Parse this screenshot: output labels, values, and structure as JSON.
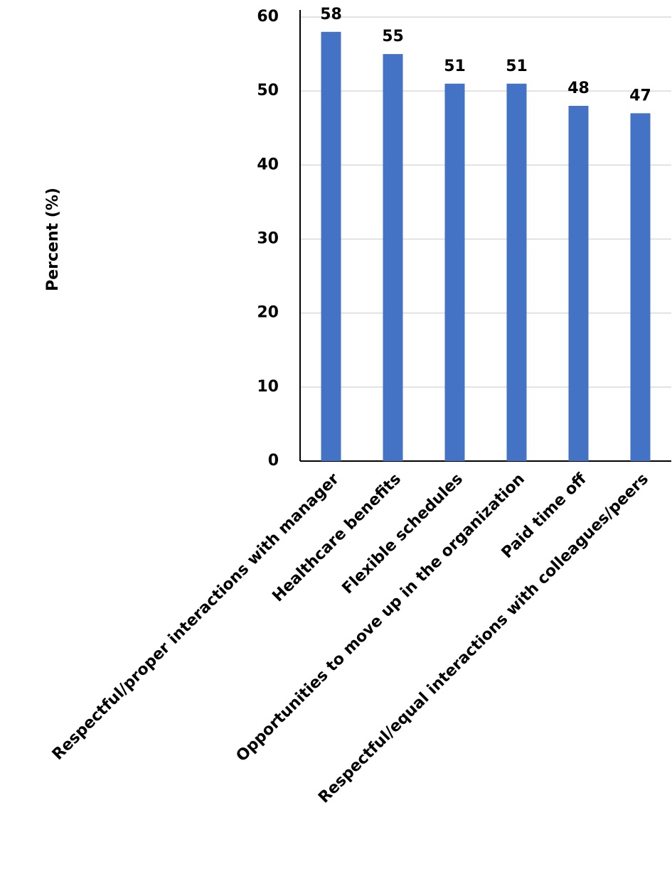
{
  "chart_data": {
    "type": "bar",
    "y_label": "Percent (%)",
    "categories": [
      "Respectful/proper interactions with manager",
      "Healthcare benefits",
      "Flexible schedules",
      "Opportunities to move up in the organization",
      "Paid time off",
      "Respectful/equal interactions with colleagues/peers"
    ],
    "values": [
      58,
      55,
      51,
      51,
      48,
      47
    ],
    "color": "#4472c4",
    "ylim": [
      0,
      60
    ],
    "yticks": [
      0,
      10,
      20,
      30,
      40,
      50,
      60
    ],
    "grid": true
  }
}
